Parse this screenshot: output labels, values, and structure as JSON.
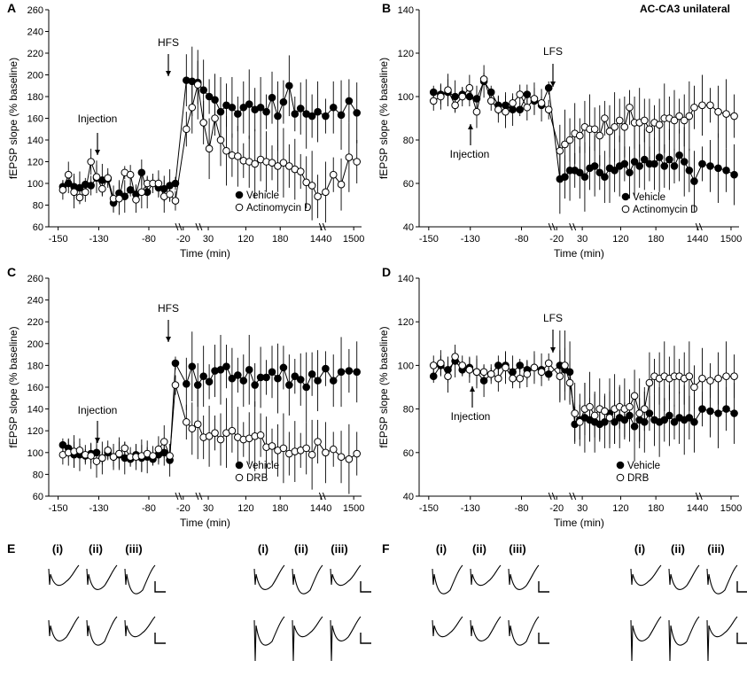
{
  "colors": {
    "vehicle": "#000000",
    "treatment": "#ffffff",
    "stroke": "#000000"
  },
  "chart_data": [
    {
      "panel": "A",
      "type": "line",
      "ylabel": "fEPSP slope (% baseline)",
      "xlabel": "Time (min)",
      "ylim": [
        60,
        260
      ],
      "yticks": [
        60,
        80,
        100,
        120,
        140,
        160,
        180,
        200,
        220,
        240,
        260
      ],
      "x_tick_labels": [
        "-150",
        "-130",
        "-80",
        "-20",
        "30",
        "120",
        "180",
        "1440",
        "1500"
      ],
      "stimulus": "HFS",
      "injection": "Injection",
      "legend": [
        "Vehicle",
        "Actinomycin D"
      ],
      "series": [
        {
          "name": "Vehicle",
          "filled": true,
          "values": [
            97,
            100,
            97,
            96,
            99,
            98,
            105,
            103,
            104,
            82,
            91,
            88,
            94,
            90,
            110,
            92,
            100,
            96,
            95,
            98,
            100,
            195,
            194,
            193,
            186,
            180,
            177,
            166,
            172,
            170,
            164,
            170,
            173,
            168,
            170,
            166,
            179,
            162,
            175,
            190,
            164,
            169,
            164,
            162,
            166,
            162,
            170,
            163,
            176,
            165
          ]
        },
        {
          "name": "Actinomycin D",
          "filled": false,
          "values": [
            94,
            108,
            92,
            87,
            92,
            120,
            106,
            95,
            105,
            86,
            86,
            110,
            108,
            85,
            92,
            100,
            100,
            100,
            88,
            90,
            84,
            150,
            170,
            191,
            156,
            132,
            160,
            140,
            130,
            126,
            125,
            121,
            120,
            118,
            122,
            120,
            119,
            116,
            119,
            116,
            113,
            111,
            101,
            98,
            88,
            92,
            108,
            99,
            124,
            120
          ]
        }
      ]
    },
    {
      "panel": "B",
      "type": "line",
      "title": "AC-CA3 unilateral",
      "ylabel": "fEPSP slope (% baseline)",
      "xlabel": "Time (min)",
      "ylim": [
        40,
        140
      ],
      "yticks": [
        40,
        60,
        80,
        100,
        120,
        140
      ],
      "x_tick_labels": [
        "-150",
        "-130",
        "-80",
        "-20",
        "30",
        "120",
        "180",
        "1440",
        "1500"
      ],
      "stimulus": "LFS",
      "injection": "Injection",
      "legend": [
        "Vehicle",
        "Actinomycin D"
      ],
      "series": [
        {
          "name": "Vehicle",
          "filled": true,
          "values": [
            102,
            101,
            102,
            100,
            101,
            100,
            99,
            107,
            102,
            96,
            96,
            94,
            94,
            101,
            98,
            96,
            104,
            62,
            63,
            66,
            66,
            65,
            63,
            67,
            68,
            65,
            63,
            67,
            66,
            68,
            69,
            65,
            70,
            68,
            71,
            69,
            69,
            72,
            68,
            71,
            68,
            73,
            70,
            66,
            61,
            69,
            68,
            67,
            66,
            64
          ]
        },
        {
          "name": "Actinomycin D",
          "filled": false,
          "values": [
            98,
            100,
            103,
            96,
            100,
            104,
            93,
            108,
            98,
            94,
            93,
            97,
            101,
            95,
            99,
            97,
            94,
            75,
            78,
            80,
            83,
            82,
            86,
            85,
            85,
            82,
            90,
            84,
            86,
            89,
            86,
            95,
            88,
            88,
            89,
            85,
            88,
            87,
            90,
            90,
            89,
            91,
            89,
            91,
            95,
            96,
            96,
            93,
            92,
            91
          ]
        }
      ]
    },
    {
      "panel": "C",
      "type": "line",
      "ylabel": "fEPSP slope (% baseline)",
      "xlabel": "Time (min)",
      "ylim": [
        60,
        260
      ],
      "yticks": [
        60,
        80,
        100,
        120,
        140,
        160,
        180,
        200,
        220,
        240,
        260
      ],
      "x_tick_labels": [
        "-150",
        "-130",
        "-80",
        "-20",
        "30",
        "120",
        "180",
        "1440",
        "1500"
      ],
      "stimulus": "HFS",
      "injection": "Injection",
      "legend": [
        "Vehicle",
        "DRB"
      ],
      "series": [
        {
          "name": "Vehicle",
          "filled": true,
          "values": [
            107,
            104,
            98,
            98,
            97,
            99,
            100,
            95,
            100,
            96,
            98,
            95,
            94,
            98,
            95,
            96,
            94,
            98,
            100,
            93,
            182,
            163,
            179,
            162,
            170,
            165,
            175,
            176,
            179,
            168,
            171,
            166,
            176,
            162,
            169,
            169,
            174,
            168,
            178,
            162,
            170,
            167,
            160,
            172,
            166,
            177,
            166,
            174,
            175,
            174
          ]
        },
        {
          "name": "DRB",
          "filled": false,
          "values": [
            98,
            100,
            101,
            102,
            98,
            97,
            92,
            95,
            102,
            96,
            99,
            104,
            96,
            96,
            97,
            99,
            97,
            103,
            110,
            97,
            162,
            128,
            122,
            126,
            114,
            115,
            118,
            112,
            118,
            120,
            114,
            112,
            113,
            115,
            116,
            105,
            106,
            102,
            104,
            99,
            101,
            102,
            104,
            98,
            110,
            100,
            103,
            96,
            94,
            99
          ]
        }
      ]
    },
    {
      "panel": "D",
      "type": "line",
      "ylabel": "fEPSP slope (% baseline)",
      "xlabel": "Time (min)",
      "ylim": [
        40,
        140
      ],
      "yticks": [
        40,
        60,
        80,
        100,
        120,
        140
      ],
      "x_tick_labels": [
        "-150",
        "-130",
        "-80",
        "-20",
        "30",
        "120",
        "180",
        "1440",
        "1500"
      ],
      "stimulus": "LFS",
      "injection": "Injection",
      "legend": [
        "Vehicle",
        "DRB"
      ],
      "series": [
        {
          "name": "Vehicle",
          "filled": true,
          "values": [
            95,
            100,
            98,
            102,
            98,
            99,
            97,
            93,
            96,
            100,
            100,
            97,
            100,
            98,
            99,
            98,
            96,
            100,
            98,
            97,
            73,
            75,
            76,
            75,
            74,
            73,
            74,
            78,
            74,
            76,
            75,
            77,
            72,
            75,
            74,
            78,
            75,
            74,
            75,
            77,
            74,
            76,
            75,
            76,
            74,
            80,
            79,
            78,
            80,
            78
          ]
        },
        {
          "name": "DRB",
          "filled": false,
          "values": [
            100,
            101,
            95,
            104,
            100,
            98,
            97,
            97,
            96,
            94,
            99,
            94,
            94,
            96,
            99,
            97,
            101,
            95,
            100,
            92,
            78,
            74,
            80,
            81,
            77,
            80,
            79,
            76,
            80,
            81,
            80,
            81,
            86,
            78,
            80,
            92,
            95,
            94,
            95,
            94,
            95,
            95,
            94,
            95,
            90,
            94,
            93,
            94,
            95,
            95
          ]
        }
      ]
    }
  ],
  "traces": [
    {
      "panel": "E",
      "roman": [
        "(i)",
        "(ii)",
        "(iii)"
      ]
    },
    {
      "panel": "",
      "roman": [
        "(i)",
        "(ii)",
        "(iii)"
      ]
    },
    {
      "panel": "F",
      "roman": [
        "(i)",
        "(ii)",
        "(iii)"
      ]
    },
    {
      "panel": "",
      "roman": [
        "(i)",
        "(ii)",
        "(iii)"
      ]
    }
  ]
}
